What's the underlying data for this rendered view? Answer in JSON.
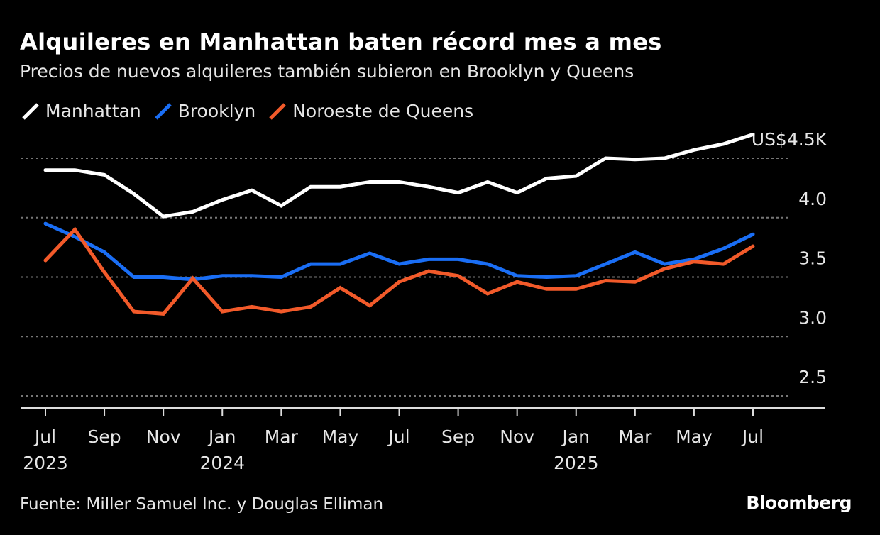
{
  "title": "Alquileres en Manhattan baten récord mes a mes",
  "subtitle": "Precios de nuevos alquileres también subieron en Brooklyn y Queens",
  "source": "Fuente: Miller Samuel Inc. y Douglas Elliman",
  "logo": "Bloomberg",
  "chart_data": {
    "type": "line",
    "title": "Alquileres en Manhattan baten récord mes a mes",
    "subtitle": "Precios de nuevos alquileres también subieron en Brooklyn y Queens",
    "x": [
      "2023-07",
      "2023-08",
      "2023-09",
      "2023-10",
      "2023-11",
      "2023-12",
      "2024-01",
      "2024-02",
      "2024-03",
      "2024-04",
      "2024-05",
      "2024-06",
      "2024-07",
      "2024-08",
      "2024-09",
      "2024-10",
      "2024-11",
      "2024-12",
      "2025-01",
      "2025-02",
      "2025-03",
      "2025-04",
      "2025-05",
      "2025-06",
      "2025-07"
    ],
    "x_ticks": [
      {
        "label": "Jul",
        "year": "2023"
      },
      {
        "label": "Sep",
        "year": ""
      },
      {
        "label": "Nov",
        "year": ""
      },
      {
        "label": "Jan",
        "year": "2024"
      },
      {
        "label": "Mar",
        "year": ""
      },
      {
        "label": "May",
        "year": ""
      },
      {
        "label": "Jul",
        "year": ""
      },
      {
        "label": "Sep",
        "year": ""
      },
      {
        "label": "Nov",
        "year": ""
      },
      {
        "label": "Jan",
        "year": "2025"
      },
      {
        "label": "Mar",
        "year": ""
      },
      {
        "label": "May",
        "year": ""
      },
      {
        "label": "Jul",
        "year": ""
      }
    ],
    "y_ticks": [
      {
        "value": 4.5,
        "label": "US$4.5K"
      },
      {
        "value": 4.0,
        "label": "4.0"
      },
      {
        "value": 3.5,
        "label": "3.5"
      },
      {
        "value": 3.0,
        "label": "3.0"
      },
      {
        "value": 2.5,
        "label": "2.5"
      }
    ],
    "ylim": [
      2.5,
      4.5
    ],
    "grid": true,
    "legend": "top-left",
    "series": [
      {
        "name": "Manhattan",
        "color": "#ffffff",
        "values": [
          4.4,
          4.4,
          4.36,
          4.2,
          4.01,
          4.05,
          4.15,
          4.23,
          4.1,
          4.26,
          4.26,
          4.3,
          4.3,
          4.26,
          4.21,
          4.3,
          4.21,
          4.33,
          4.35,
          4.5,
          4.49,
          4.5,
          4.57,
          4.62,
          4.7
        ]
      },
      {
        "name": "Brooklyn",
        "color": "#1a6ef5",
        "values": [
          3.95,
          3.84,
          3.71,
          3.5,
          3.5,
          3.48,
          3.51,
          3.51,
          3.5,
          3.61,
          3.61,
          3.7,
          3.61,
          3.65,
          3.65,
          3.61,
          3.51,
          3.5,
          3.51,
          3.61,
          3.71,
          3.61,
          3.65,
          3.74,
          3.86
        ]
      },
      {
        "name": "Noroeste de Queens",
        "color": "#f25a2a",
        "values": [
          3.64,
          3.9,
          3.54,
          3.21,
          3.19,
          3.49,
          3.21,
          3.25,
          3.21,
          3.25,
          3.41,
          3.26,
          3.46,
          3.55,
          3.51,
          3.36,
          3.46,
          3.4,
          3.4,
          3.47,
          3.46,
          3.57,
          3.63,
          3.61,
          3.76
        ]
      }
    ]
  }
}
